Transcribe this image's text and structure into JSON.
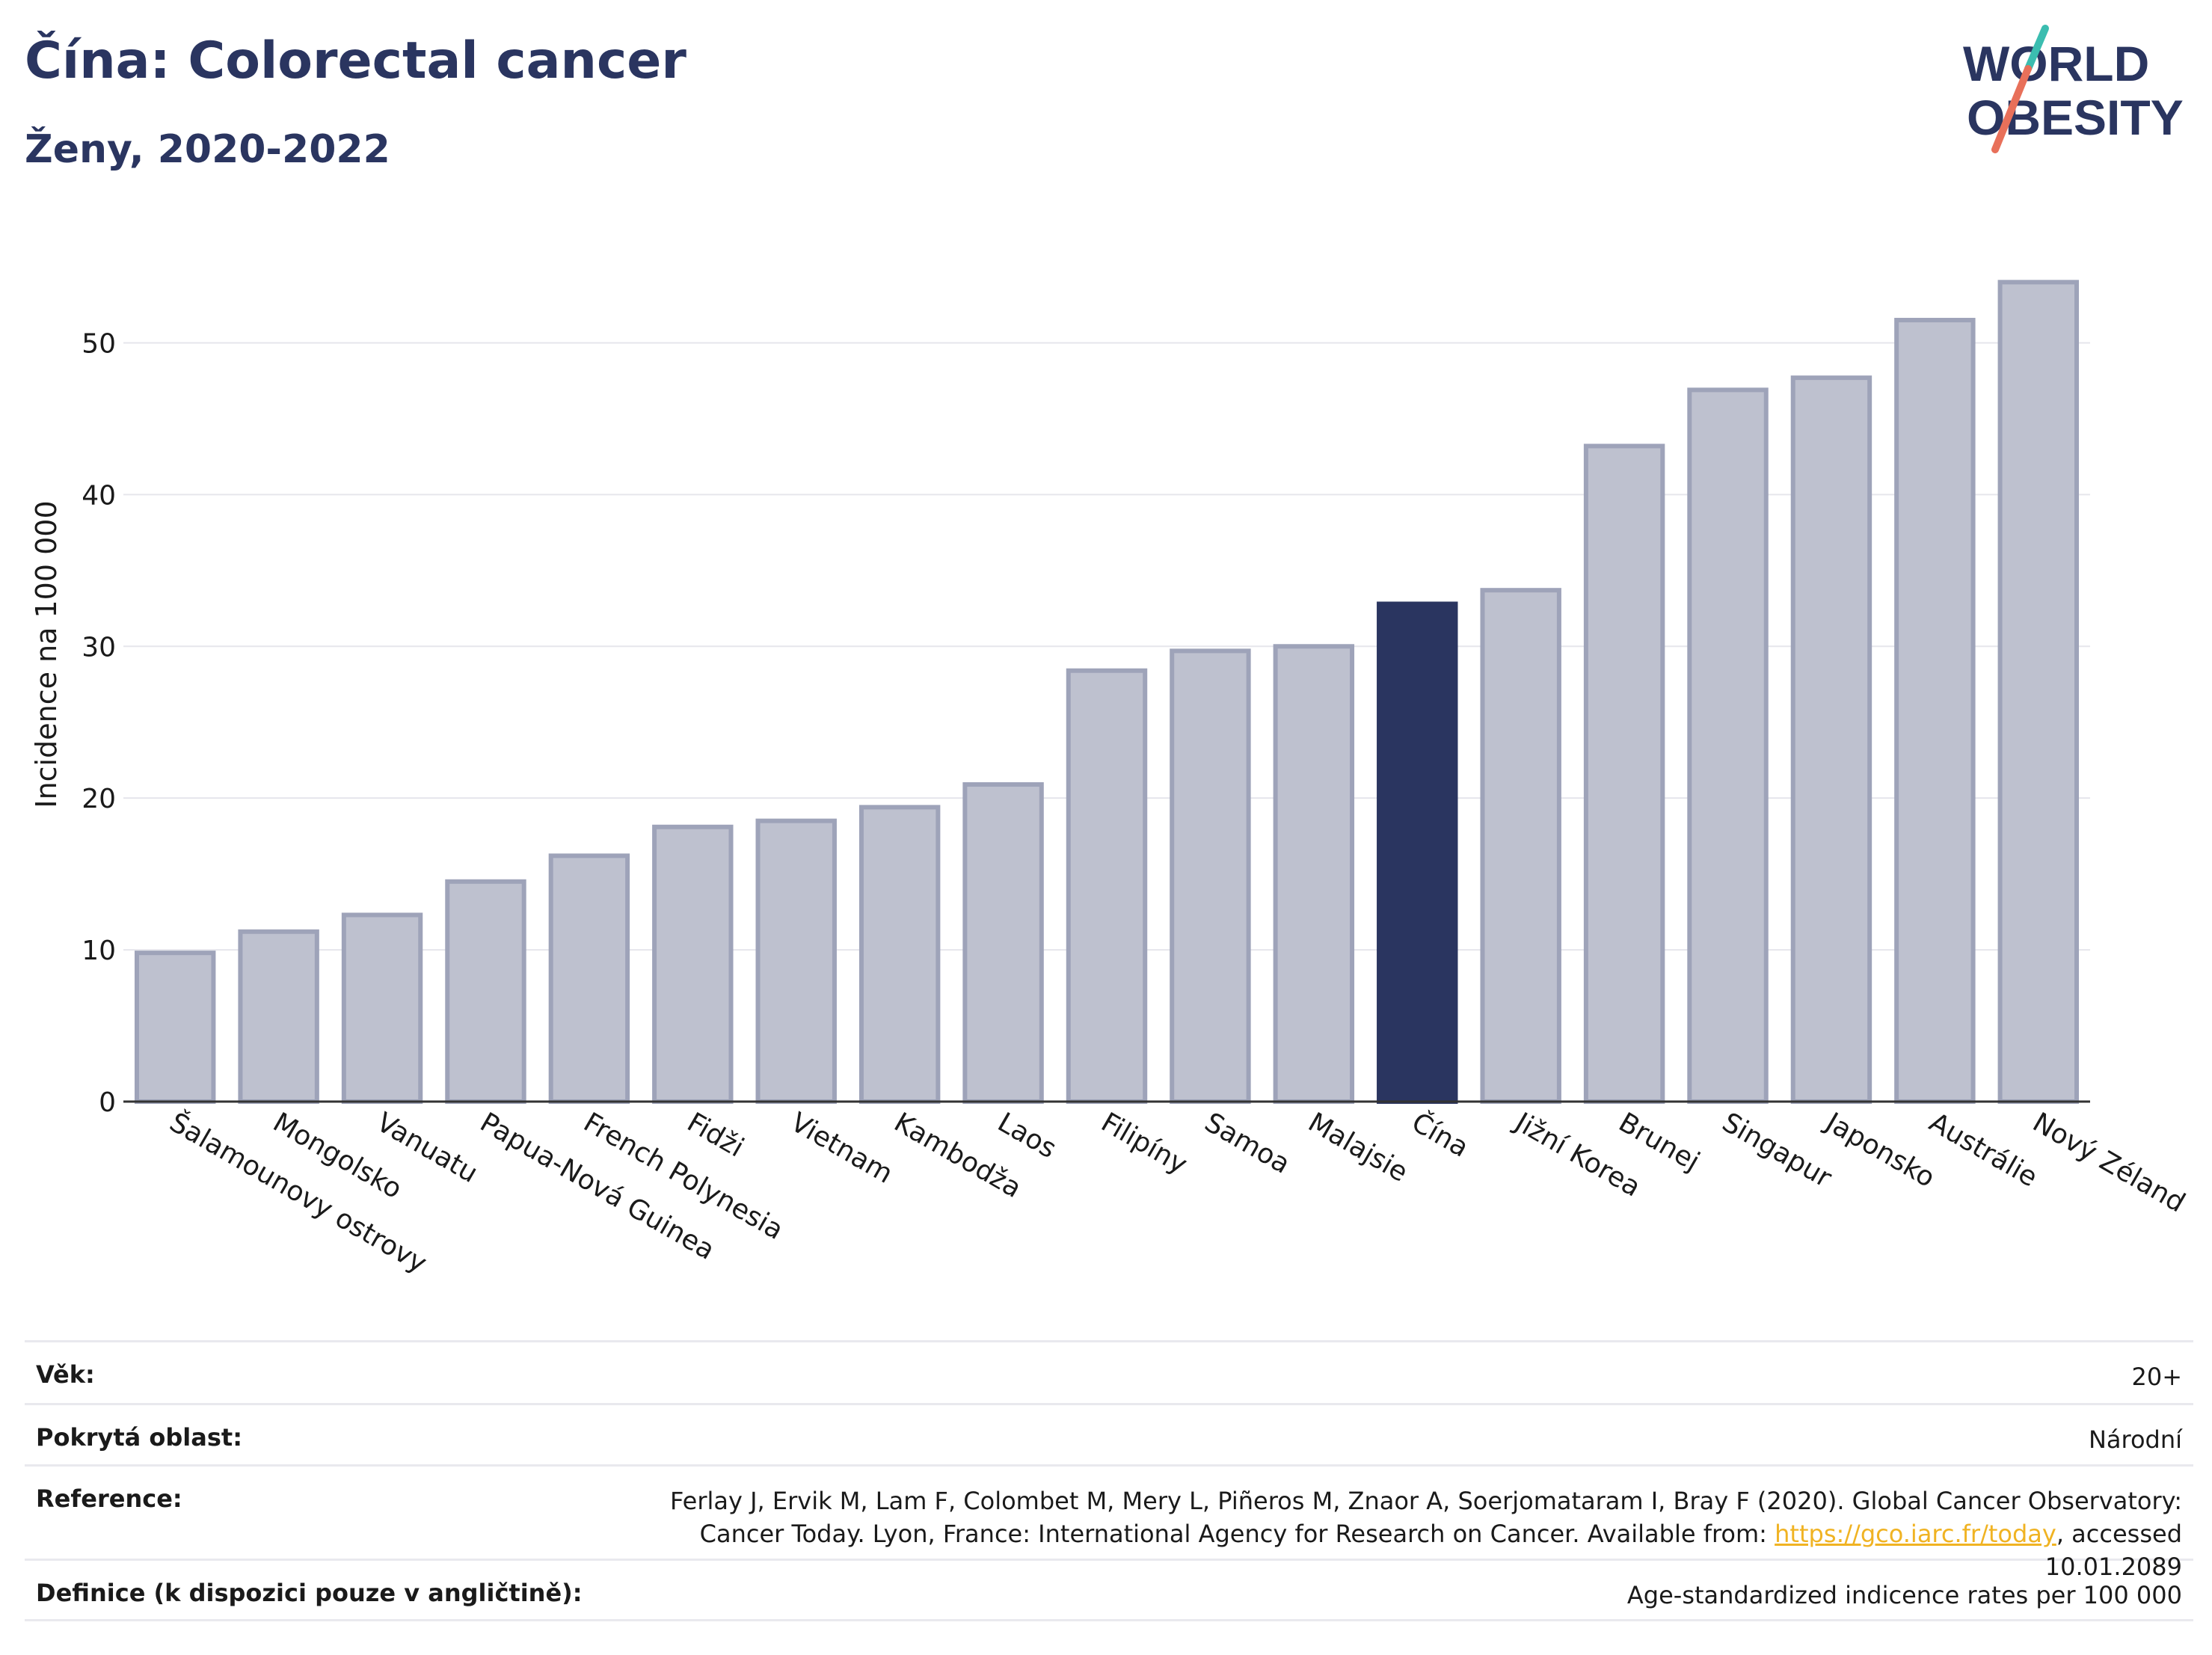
{
  "header": {
    "title": "Čína: Colorectal cancer",
    "subtitle": "Ženy, 2020-2022",
    "logo_text_top": "WORLD",
    "logo_text_bottom": "OBESITY"
  },
  "colors": {
    "bar": "#bec1cf",
    "bar_stroke": "#9ea3b9",
    "highlight": "#2a3560",
    "grid": "#e6e6ec",
    "axis": "#333333",
    "link": "#f0b323"
  },
  "chart_data": {
    "type": "bar",
    "title": "Čína: Colorectal cancer",
    "subtitle": "Ženy, 2020-2022",
    "ylabel": "Incidence na 100 000",
    "xlabel": "",
    "ylim": [
      0,
      55
    ],
    "yticks": [
      0,
      10,
      20,
      30,
      40,
      50
    ],
    "grid": true,
    "highlight": "Čína",
    "categories": [
      "Šalamounovy ostrovy",
      "Mongolsko",
      "Vanuatu",
      "Papua-Nová Guinea",
      "French Polynesia",
      "Fidži",
      "Vietnam",
      "Kambodža",
      "Laos",
      "Filipíny",
      "Samoa",
      "Malajsie",
      "Čína",
      "Jižní Korea",
      "Brunej",
      "Singapur",
      "Japonsko",
      "Austrálie",
      "Nový Zéland"
    ],
    "values": [
      9.8,
      11.2,
      12.3,
      14.5,
      16.2,
      18.1,
      18.5,
      19.4,
      20.9,
      28.4,
      29.7,
      30.0,
      32.8,
      33.7,
      43.2,
      46.9,
      47.7,
      51.5,
      54.0
    ]
  },
  "meta": {
    "age_label": "Věk:",
    "age_value": "20+",
    "area_label": "Pokrytá oblast:",
    "area_value": "Národní",
    "reference_label": "Reference:",
    "reference_text_1": "Ferlay J, Ervik M, Lam F, Colombet M, Mery L, Piñeros M, Znaor A, Soerjomataram I, Bray F (2020). Global Cancer Observatory: Cancer Today. Lyon, France: International Agency for Research on Cancer. Available from: ",
    "reference_link": "https://gco.iarc.fr/today",
    "reference_text_2": ", accessed 10.01.2089",
    "definition_label": "Definice (k dispozici pouze v angličtině):",
    "definition_value": "Age-standardized indicence rates per 100 000"
  }
}
